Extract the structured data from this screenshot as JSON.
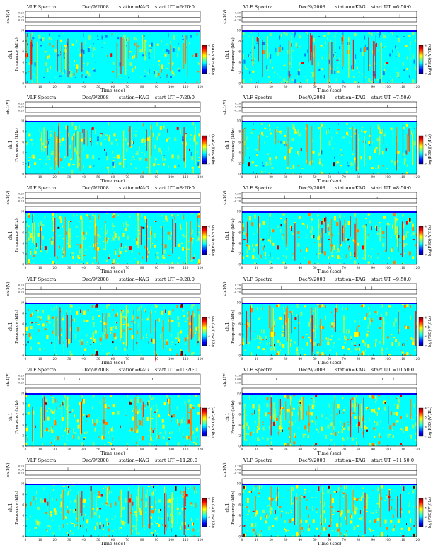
{
  "page": {
    "label_vlf": "VLF Spectra",
    "date": "Dec/9/2008",
    "station": "station=KAG",
    "xlabel": "Time (sec)",
    "ylabel_ch": "ch.1",
    "ylabel_freq": "Frequency (kHz)",
    "ylabel_amp": "ch.1(V)",
    "colorbar_label": "log(PSD)(V²/Hz)"
  },
  "chart_data": [
    {
      "type": "heatmap",
      "start": "start UT =6:20:0",
      "x_ticks": [
        0,
        10,
        20,
        30,
        40,
        50,
        60,
        70,
        80,
        90,
        100,
        110,
        120
      ],
      "xlim": [
        0,
        120
      ],
      "ylim": [
        0,
        10
      ],
      "y_ticks": [
        0,
        2,
        4,
        6,
        8,
        10
      ],
      "amp_ticks": [
        "0.20",
        "0.00",
        "-0.20"
      ],
      "colorbar_ticks": [
        "-4",
        "-5",
        "-6",
        "-7"
      ]
    },
    {
      "type": "heatmap",
      "start": "start UT =6:50:0",
      "x_ticks": [
        0,
        10,
        20,
        30,
        40,
        50,
        60,
        70,
        80,
        90,
        100,
        110,
        120
      ],
      "xlim": [
        0,
        120
      ],
      "ylim": [
        0,
        10
      ],
      "y_ticks": [
        0,
        2,
        4,
        6,
        8,
        10
      ],
      "amp_ticks": [
        "0.20",
        "0.00",
        "-0.20"
      ],
      "colorbar_ticks": [
        "-4",
        "-5",
        "-6",
        "-7"
      ]
    },
    {
      "type": "heatmap",
      "start": "start UT =7:20:0",
      "x_ticks": [
        0,
        10,
        20,
        30,
        40,
        50,
        60,
        70,
        80,
        90,
        100,
        110,
        120
      ],
      "xlim": [
        0,
        120
      ],
      "ylim": [
        0,
        10
      ],
      "y_ticks": [
        0,
        2,
        4,
        6,
        8,
        10
      ],
      "amp_ticks": [
        "0.20",
        "0.00",
        "-0.20"
      ],
      "colorbar_ticks": [
        "-4",
        "-5",
        "-6",
        "-7"
      ]
    },
    {
      "type": "heatmap",
      "start": "start UT =7:50:0",
      "x_ticks": [
        0,
        10,
        20,
        30,
        40,
        50,
        60,
        70,
        80,
        90,
        100,
        110,
        120
      ],
      "xlim": [
        0,
        120
      ],
      "ylim": [
        0,
        10
      ],
      "y_ticks": [
        0,
        2,
        4,
        6,
        8,
        10
      ],
      "amp_ticks": [
        "0.20",
        "0.00",
        "-0.20"
      ],
      "colorbar_ticks": [
        "-4",
        "-5",
        "-6",
        "-7"
      ]
    },
    {
      "type": "heatmap",
      "start": "start UT =8:20:0",
      "x_ticks": [
        0,
        10,
        20,
        30,
        40,
        50,
        60,
        70,
        80,
        90,
        100,
        110,
        120
      ],
      "xlim": [
        0,
        120
      ],
      "ylim": [
        0,
        10
      ],
      "y_ticks": [
        0,
        2,
        4,
        6,
        8,
        10
      ],
      "amp_ticks": [
        "0.20",
        "0.00",
        "-0.20"
      ],
      "colorbar_ticks": [
        "-4",
        "-5",
        "-6",
        "-7"
      ]
    },
    {
      "type": "heatmap",
      "start": "start UT =8:50:0",
      "x_ticks": [
        0,
        10,
        20,
        30,
        40,
        50,
        60,
        70,
        80,
        90,
        100,
        110,
        120
      ],
      "xlim": [
        0,
        120
      ],
      "ylim": [
        0,
        10
      ],
      "y_ticks": [
        0,
        2,
        4,
        6,
        8,
        10
      ],
      "amp_ticks": [
        "0.20",
        "0.00",
        "-0.20"
      ],
      "colorbar_ticks": [
        "-4",
        "-5",
        "-6",
        "-7"
      ]
    },
    {
      "type": "heatmap",
      "start": "start UT =9:20:0",
      "x_ticks": [
        0,
        10,
        20,
        30,
        40,
        50,
        60,
        70,
        80,
        90,
        100,
        110,
        120
      ],
      "xlim": [
        0,
        120
      ],
      "ylim": [
        0,
        10
      ],
      "y_ticks": [
        0,
        2,
        4,
        6,
        8,
        10
      ],
      "amp_ticks": [
        "0.20",
        "0.00",
        "-0.20"
      ],
      "colorbar_ticks": [
        "-4",
        "-5",
        "-6",
        "-7"
      ]
    },
    {
      "type": "heatmap",
      "start": "start UT =9:50:0",
      "x_ticks": [
        0,
        10,
        20,
        30,
        40,
        50,
        60,
        70,
        80,
        90,
        100,
        110,
        120
      ],
      "xlim": [
        0,
        120
      ],
      "ylim": [
        0,
        10
      ],
      "y_ticks": [
        0,
        2,
        4,
        6,
        8,
        10
      ],
      "amp_ticks": [
        "0.20",
        "0.00",
        "-0.20"
      ],
      "colorbar_ticks": [
        "-4",
        "-5",
        "-6",
        "-7"
      ]
    },
    {
      "type": "heatmap",
      "start": "start UT =10:20:0",
      "x_ticks": [
        0,
        10,
        20,
        30,
        40,
        50,
        60,
        70,
        80,
        90,
        100,
        110,
        120
      ],
      "xlim": [
        0,
        120
      ],
      "ylim": [
        0,
        10
      ],
      "y_ticks": [
        0,
        2,
        4,
        6,
        8,
        10
      ],
      "amp_ticks": [
        "0.20",
        "0.00",
        "-0.20"
      ],
      "colorbar_ticks": [
        "-4",
        "-5",
        "-6",
        "-7"
      ]
    },
    {
      "type": "heatmap",
      "start": "start UT =10:50:0",
      "x_ticks": [
        0,
        10,
        20,
        30,
        40,
        50,
        60,
        70,
        80,
        90,
        100,
        110,
        120
      ],
      "xlim": [
        0,
        120
      ],
      "ylim": [
        0,
        10
      ],
      "y_ticks": [
        0,
        2,
        4,
        6,
        8,
        10
      ],
      "amp_ticks": [
        "0.20",
        "0.00",
        "-0.20"
      ],
      "colorbar_ticks": [
        "-4",
        "-5",
        "-6",
        "-7"
      ]
    },
    {
      "type": "heatmap",
      "start": "start UT =11:20:0",
      "x_ticks": [
        0,
        10,
        20,
        30,
        40,
        50,
        60,
        70,
        80,
        90,
        100,
        110,
        120
      ],
      "xlim": [
        0,
        120
      ],
      "ylim": [
        0,
        10
      ],
      "y_ticks": [
        0,
        2,
        4,
        6,
        8,
        10
      ],
      "amp_ticks": [
        "0.20",
        "0.00",
        "-0.20"
      ],
      "colorbar_ticks": [
        "-4",
        "-5",
        "-6",
        "-7"
      ]
    },
    {
      "type": "heatmap",
      "start": "start UT =11:50:0",
      "x_ticks": [
        0,
        10,
        20,
        30,
        40,
        50,
        60,
        70,
        80,
        90,
        100,
        110,
        120
      ],
      "xlim": [
        0,
        120
      ],
      "ylim": [
        0,
        10
      ],
      "y_ticks": [
        0,
        2,
        4,
        6,
        8,
        10
      ],
      "amp_ticks": [
        "0.20",
        "0.00",
        "-0.20"
      ],
      "colorbar_ticks": [
        "-4",
        "-5",
        "-6",
        "-7"
      ]
    }
  ],
  "colors": {
    "colormap": [
      "#00008f",
      "#0000ff",
      "#0080ff",
      "#00ffff",
      "#80ff80",
      "#ffff00",
      "#ff8000",
      "#ff0000",
      "#800000"
    ]
  }
}
